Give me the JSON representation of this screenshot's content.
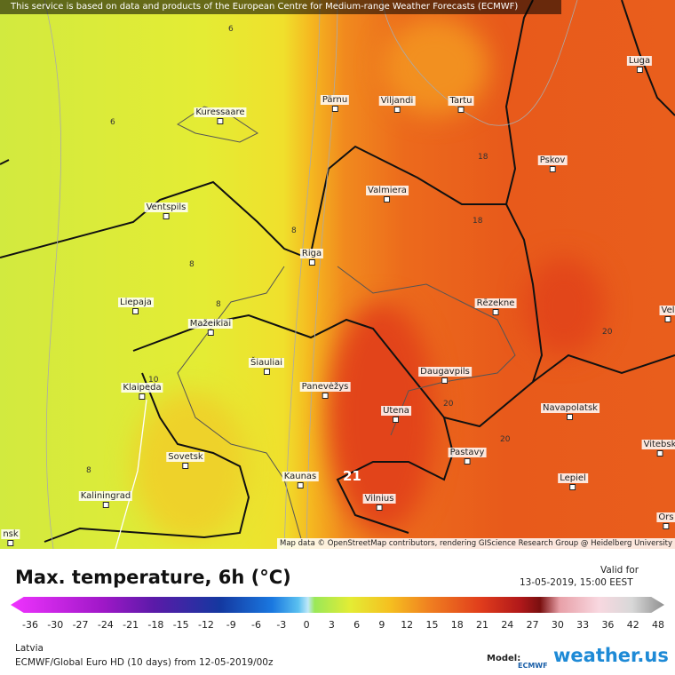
{
  "banner": "This service is based on data and products of the European Centre for Medium-range Weather Forecasts (ECMWF)",
  "attribution": "Map data © OpenStreetMap contributors, rendering GIScience Research Group @ Heidelberg University",
  "cities": [
    "Kuressaare",
    "Pärnu",
    "Viljandi",
    "Tartu",
    "Luga",
    "Pskov",
    "Valmiera",
    "Ventspils",
    "Riga",
    "Liepaja",
    "Rēzekne",
    "Mažeikiai",
    "Šiauliai",
    "Klaipeda",
    "Panevėžys",
    "Daugavpils",
    "Utena",
    "Navapolatsk",
    "Vitebsk",
    "Sovetsk",
    "Pastavy",
    "Kaunas",
    "Lepiel",
    "Vilnius",
    "Kaliningrad",
    "Ors",
    "Vel",
    "nsk"
  ],
  "contours": [
    "6",
    "6",
    "8",
    "8",
    "8",
    "10",
    "8",
    "18",
    "18",
    "20",
    "20",
    "20"
  ],
  "max_label": "21",
  "title": "Max. temperature, 6h (°C)",
  "valid_label": "Valid for",
  "valid_time": "13-05-2019, 15:00 EEST",
  "scale_ticks": [
    -36,
    -30,
    -27,
    -24,
    -21,
    -18,
    -15,
    -12,
    -9,
    -6,
    -3,
    0,
    3,
    6,
    9,
    12,
    15,
    18,
    21,
    24,
    27,
    30,
    33,
    36,
    42,
    48
  ],
  "region": "Latvia",
  "model_run": "ECMWF/Global Euro HD (10 days) from 12-05-2019/00z",
  "model_label": "Model:",
  "model_name": "ECMWF",
  "brand": "weather.us"
}
